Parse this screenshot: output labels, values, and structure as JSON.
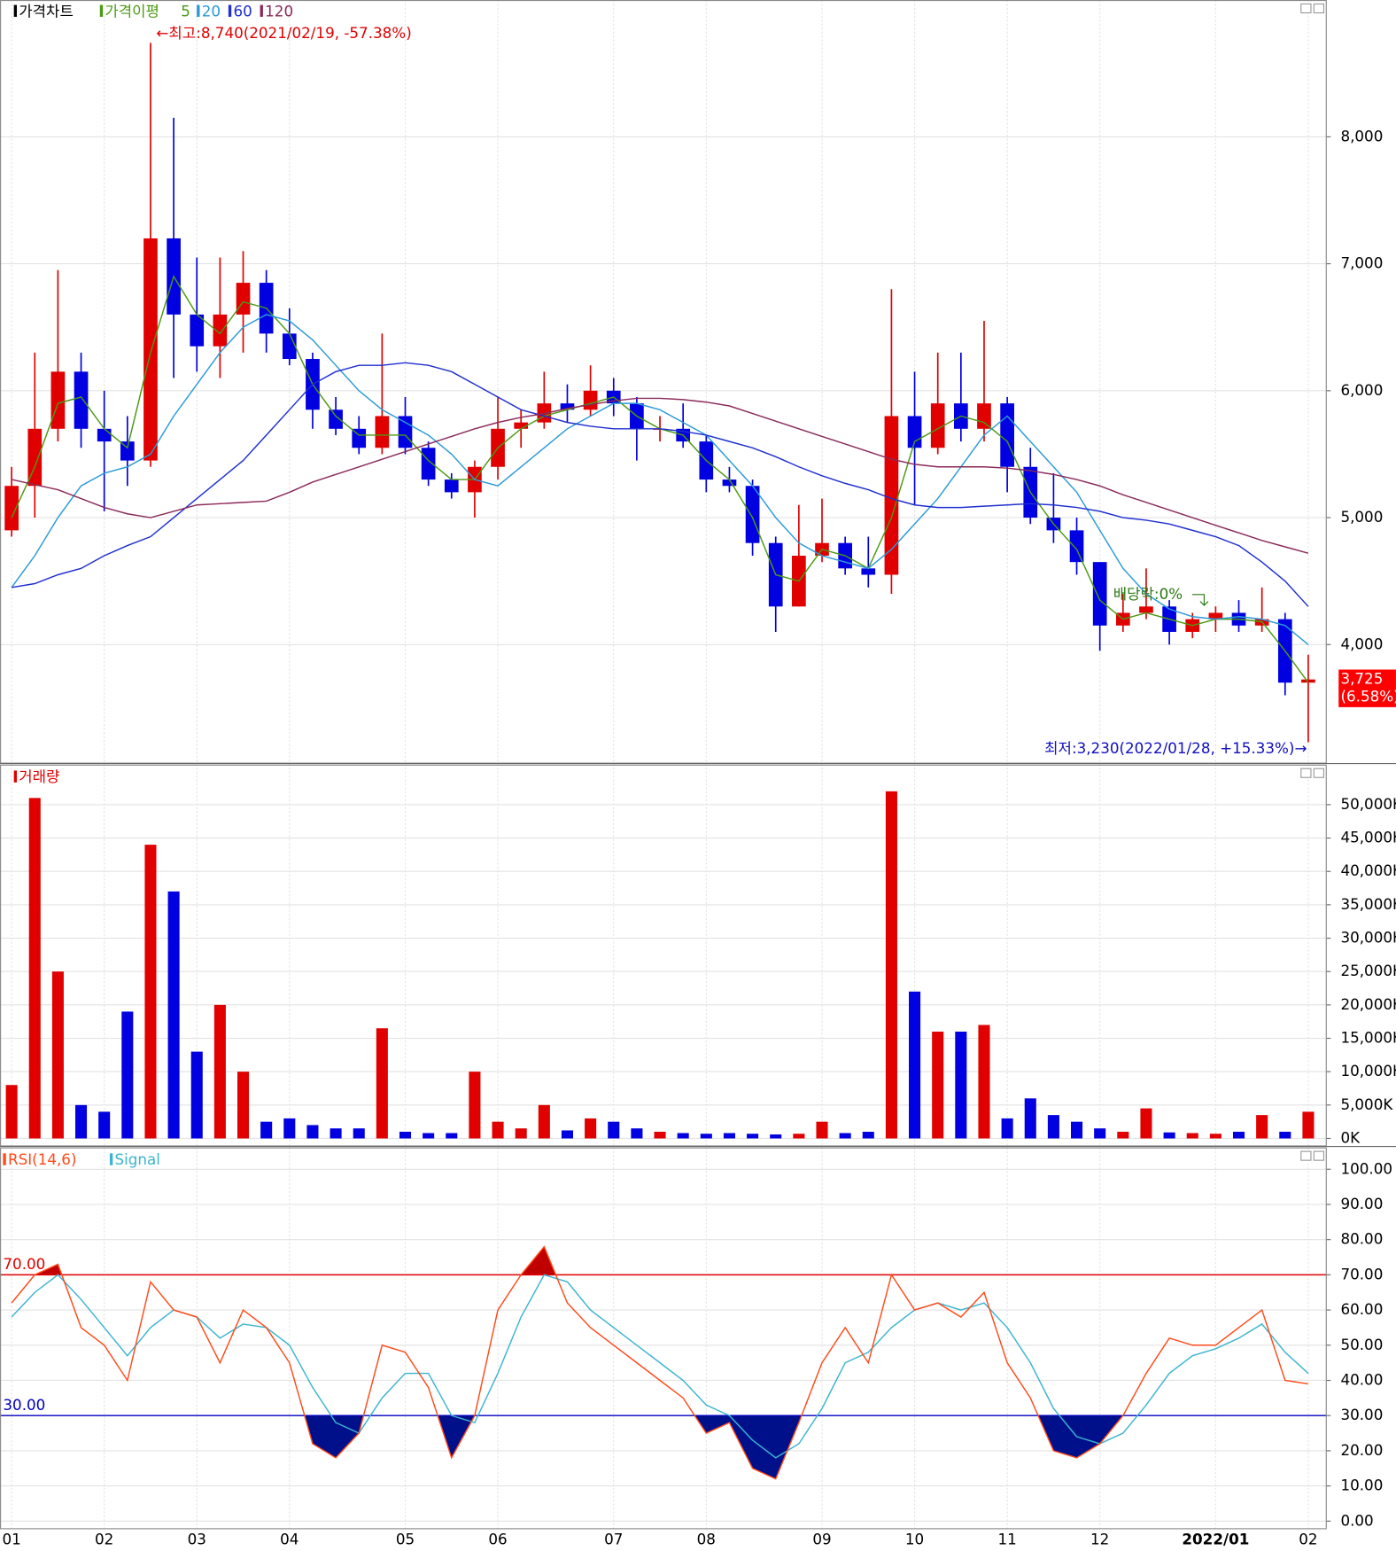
{
  "chart_data": [
    {
      "type": "candlestick",
      "title": "가격차트",
      "ma_title": "가격이평",
      "categories": [
        "01",
        null,
        null,
        null,
        "02",
        null,
        null,
        null,
        "03",
        null,
        null,
        null,
        "04",
        null,
        null,
        null,
        null,
        "05",
        null,
        null,
        null,
        "06",
        null,
        null,
        null,
        null,
        "07",
        null,
        null,
        null,
        "08",
        null,
        null,
        null,
        null,
        "09",
        null,
        null,
        null,
        "10",
        null,
        null,
        null,
        "11",
        null,
        null,
        null,
        "12",
        null,
        null,
        null,
        null,
        "2022/01",
        null,
        null,
        null,
        "02"
      ],
      "open": [
        4900,
        5250,
        5700,
        6150,
        5700,
        5600,
        5450,
        7200,
        6600,
        6350,
        6600,
        6850,
        6450,
        6250,
        5850,
        5700,
        5550,
        5800,
        5550,
        5300,
        5200,
        5400,
        5700,
        5750,
        5900,
        5850,
        6000,
        5900,
        5700,
        5700,
        5600,
        5300,
        5250,
        4800,
        4300,
        4700,
        4800,
        4600,
        4550,
        5800,
        5550,
        5900,
        5700,
        5900,
        5400,
        5000,
        4900,
        4650,
        4150,
        4250,
        4300,
        4100,
        4200,
        4250,
        4150,
        4200,
        3700
      ],
      "high": [
        5400,
        6300,
        6950,
        6300,
        6000,
        5800,
        8740,
        8150,
        7050,
        7050,
        7100,
        6950,
        6650,
        6300,
        5950,
        5800,
        6450,
        5950,
        5600,
        5350,
        5450,
        5950,
        5850,
        6150,
        6050,
        6200,
        6100,
        5950,
        5800,
        5900,
        5650,
        5400,
        5300,
        4850,
        5100,
        5150,
        4850,
        4850,
        6800,
        6150,
        6300,
        6300,
        6550,
        5950,
        5550,
        5350,
        5000,
        4650,
        4400,
        4600,
        4350,
        4250,
        4300,
        4350,
        4450,
        4250,
        3920
      ],
      "low": [
        4850,
        5000,
        5600,
        5550,
        5050,
        5250,
        5400,
        6100,
        6150,
        6100,
        6300,
        6300,
        6200,
        5700,
        5650,
        5500,
        5500,
        5500,
        5250,
        5150,
        5000,
        5300,
        5550,
        5700,
        5750,
        5800,
        5800,
        5450,
        5600,
        5550,
        5200,
        5200,
        4700,
        4100,
        4300,
        4650,
        4550,
        4450,
        4400,
        5100,
        5500,
        5600,
        5600,
        5200,
        4950,
        4800,
        4550,
        3950,
        4100,
        4200,
        4000,
        4050,
        4100,
        4100,
        4100,
        3600,
        3230
      ],
      "close": [
        5250,
        5700,
        6150,
        5700,
        5600,
        5450,
        7200,
        6600,
        6350,
        6600,
        6850,
        6450,
        6250,
        5850,
        5700,
        5550,
        5800,
        5550,
        5300,
        5200,
        5400,
        5700,
        5750,
        5900,
        5850,
        6000,
        5900,
        5700,
        5700,
        5600,
        5300,
        5250,
        4800,
        4300,
        4700,
        4800,
        4600,
        4550,
        5800,
        5550,
        5900,
        5700,
        5900,
        5400,
        5000,
        4900,
        4650,
        4150,
        4250,
        4300,
        4100,
        4200,
        4250,
        4150,
        4200,
        3700,
        3725
      ],
      "up_color": "#e00000",
      "down_color": "#0000e0",
      "moving_averages": [
        {
          "name": "5",
          "color": "#4a9a12",
          "values": [
            5000,
            5400,
            5900,
            5950,
            5700,
            5550,
            6300,
            6900,
            6600,
            6450,
            6700,
            6650,
            6450,
            6050,
            5800,
            5650,
            5650,
            5650,
            5450,
            5300,
            5300,
            5550,
            5700,
            5800,
            5850,
            5900,
            5950,
            5800,
            5700,
            5650,
            5450,
            5300,
            5000,
            4550,
            4500,
            4750,
            4700,
            4600,
            5000,
            5600,
            5700,
            5800,
            5750,
            5600,
            5200,
            4950,
            4750,
            4350,
            4200,
            4250,
            4200,
            4150,
            4200,
            4200,
            4180,
            3950,
            3700
          ]
        },
        {
          "name": "20",
          "color": "#2a9ad8",
          "values": [
            4450,
            4700,
            5000,
            5250,
            5350,
            5400,
            5500,
            5800,
            6050,
            6300,
            6500,
            6600,
            6550,
            6400,
            6200,
            6000,
            5850,
            5750,
            5650,
            5500,
            5300,
            5250,
            5400,
            5550,
            5700,
            5800,
            5900,
            5900,
            5850,
            5750,
            5650,
            5450,
            5250,
            5000,
            4800,
            4700,
            4650,
            4600,
            4750,
            4950,
            5150,
            5400,
            5650,
            5800,
            5600,
            5400,
            5200,
            4900,
            4600,
            4400,
            4280,
            4220,
            4200,
            4220,
            4200,
            4150,
            4000
          ]
        },
        {
          "name": "60",
          "color": "#1f2fd0",
          "values": [
            4450,
            4480,
            4550,
            4600,
            4700,
            4780,
            4850,
            5000,
            5150,
            5300,
            5450,
            5650,
            5850,
            6050,
            6150,
            6200,
            6200,
            6220,
            6200,
            6150,
            6050,
            5950,
            5850,
            5800,
            5750,
            5720,
            5700,
            5700,
            5700,
            5680,
            5650,
            5600,
            5550,
            5480,
            5400,
            5330,
            5270,
            5220,
            5150,
            5100,
            5080,
            5080,
            5090,
            5100,
            5110,
            5100,
            5080,
            5050,
            5000,
            4980,
            4950,
            4900,
            4850,
            4780,
            4650,
            4500,
            4300
          ]
        },
        {
          "name": "120",
          "color": "#8b2a5a",
          "values": [
            5300,
            5260,
            5220,
            5150,
            5080,
            5030,
            5000,
            5050,
            5100,
            5110,
            5120,
            5130,
            5200,
            5280,
            5340,
            5400,
            5460,
            5520,
            5580,
            5640,
            5700,
            5750,
            5790,
            5820,
            5860,
            5890,
            5920,
            5940,
            5940,
            5930,
            5910,
            5880,
            5820,
            5760,
            5700,
            5640,
            5580,
            5520,
            5460,
            5420,
            5400,
            5400,
            5400,
            5390,
            5370,
            5340,
            5300,
            5250,
            5180,
            5120,
            5060,
            5000,
            4940,
            4880,
            4820,
            4770,
            4720
          ]
        }
      ],
      "ylim": [
        3062,
        9078
      ],
      "yticks": [
        {
          "value": 4000,
          "label": "4,000"
        },
        {
          "value": 5000,
          "label": "5,000"
        },
        {
          "value": 6000,
          "label": "6,000"
        },
        {
          "value": 7000,
          "label": "7,000"
        },
        {
          "value": 8000,
          "label": "8,000"
        }
      ],
      "high_label": "←최고:8,740(2021/02/19, -57.38%)",
      "low_label": "최저:3,230(2022/01/28, +15.33%)→",
      "dividend_label": "배당락:0%",
      "last_price": {
        "value": 3725,
        "label": "3,725"
      },
      "last_change": "(6.58%)"
    },
    {
      "type": "bar",
      "title": "거래량",
      "values": [
        8000,
        51000,
        25000,
        5000,
        4000,
        19000,
        44000,
        37000,
        13000,
        20000,
        10000,
        2500,
        3000,
        2000,
        1500,
        1500,
        16500,
        1000,
        800,
        800,
        10000,
        2500,
        1500,
        5000,
        1200,
        3000,
        2500,
        1500,
        1000,
        800,
        700,
        800,
        700,
        600,
        700,
        2500,
        800,
        1000,
        52000,
        22000,
        16000,
        16000,
        17000,
        3000,
        6000,
        3500,
        2500,
        1500,
        1000,
        4500,
        900,
        800,
        700,
        1000,
        3500,
        1000,
        4000
      ],
      "ylim": [
        -1200,
        56000
      ],
      "yticks": [
        {
          "value": 0,
          "label": "0K"
        },
        {
          "value": 5000,
          "label": "5,000K"
        },
        {
          "value": 10000,
          "label": "10,000K"
        },
        {
          "value": 15000,
          "label": "15,000K"
        },
        {
          "value": 20000,
          "label": "20,000K"
        },
        {
          "value": 25000,
          "label": "25,000K"
        },
        {
          "value": 30000,
          "label": "30,000K"
        },
        {
          "value": 35000,
          "label": "35,000K"
        },
        {
          "value": 40000,
          "label": "40,000K"
        },
        {
          "value": 45000,
          "label": "45,000K"
        },
        {
          "value": 50000,
          "label": "50,000K"
        }
      ]
    },
    {
      "type": "line",
      "series": [
        {
          "name": "RSI(14,6)",
          "color": "#ff4a1a",
          "values": [
            62,
            70,
            73,
            55,
            50,
            40,
            68,
            60,
            58,
            45,
            60,
            55,
            45,
            22,
            18,
            25,
            50,
            48,
            38,
            18,
            30,
            60,
            70,
            78,
            62,
            55,
            50,
            45,
            40,
            35,
            25,
            28,
            15,
            12,
            28,
            45,
            55,
            45,
            70,
            60,
            62,
            58,
            65,
            45,
            35,
            20,
            18,
            22,
            30,
            42,
            52,
            50,
            50,
            55,
            60,
            40,
            39
          ]
        },
        {
          "name": "Signal",
          "color": "#3cb4d0",
          "values": [
            58,
            65,
            70,
            63,
            55,
            47,
            55,
            60,
            58,
            52,
            56,
            55,
            50,
            38,
            28,
            25,
            35,
            42,
            42,
            30,
            28,
            42,
            58,
            70,
            68,
            60,
            55,
            50,
            45,
            40,
            33,
            30,
            23,
            18,
            22,
            32,
            45,
            48,
            55,
            60,
            62,
            60,
            62,
            55,
            45,
            32,
            24,
            22,
            25,
            33,
            42,
            47,
            49,
            52,
            56,
            48,
            42
          ]
        }
      ],
      "references": [
        {
          "value": 70,
          "label": "70.00",
          "color": "#e00000",
          "fill": "#c00000"
        },
        {
          "value": 30,
          "label": "30.00",
          "color": "#0000c0",
          "fill": "#00108a"
        }
      ],
      "ylim": [
        -2.3,
        106.2
      ],
      "yticks": [
        {
          "value": 0,
          "label": "0.00"
        },
        {
          "value": 10,
          "label": "10.00"
        },
        {
          "value": 20,
          "label": "20.00"
        },
        {
          "value": 30,
          "label": "30.00"
        },
        {
          "value": 40,
          "label": "40.00"
        },
        {
          "value": 50,
          "label": "50.00"
        },
        {
          "value": 60,
          "label": "60.00"
        },
        {
          "value": 70,
          "label": "70.00"
        },
        {
          "value": 80,
          "label": "80.00"
        },
        {
          "value": 90,
          "label": "90.00"
        },
        {
          "value": 100,
          "label": "100.00"
        }
      ]
    }
  ]
}
